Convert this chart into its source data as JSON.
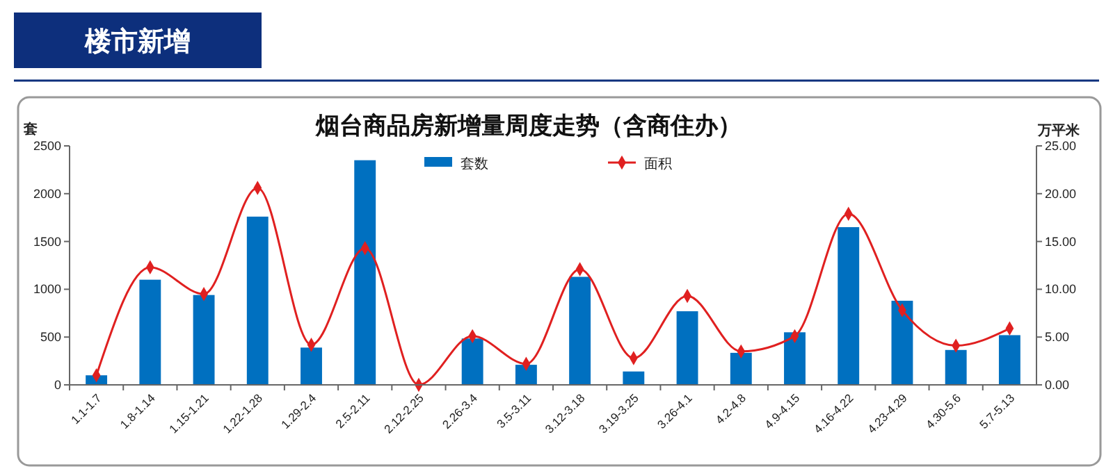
{
  "chart_data": {
    "type": "bar",
    "title": "楼市新增",
    "subtitle": "烟台商品房新增量周度走势（含商住办）",
    "ylabel": "套",
    "y2label": "万平米",
    "categories": [
      "1.1-1.7",
      "1.8-1.14",
      "1.15-1.21",
      "1.22-1.28",
      "1.29-2.4",
      "2.5-2.11",
      "2.12-2.25",
      "2.26-3.4",
      "3.5-3.11",
      "3.12-3.18",
      "3.19-3.25",
      "3.26-4.1",
      "4.2-4.8",
      "4.9-4.15",
      "4.16-4.22",
      "4.23-4.29",
      "4.30-5.6",
      "5.7-5.13"
    ],
    "series": [
      {
        "name": "套数",
        "color": "#0070c0",
        "values": [
          100,
          1100,
          940,
          1760,
          390,
          2350,
          0,
          485,
          210,
          1130,
          140,
          770,
          335,
          550,
          1650,
          880,
          365,
          520
        ]
      },
      {
        "name": "面积",
        "type": "line",
        "axis": "y2",
        "color": "#e02020",
        "marker": "diamond",
        "values": [
          1.0,
          12.3,
          9.5,
          20.6,
          4.2,
          14.3,
          0,
          5.1,
          2.2,
          12.1,
          2.8,
          9.3,
          3.5,
          5.1,
          17.9,
          7.8,
          4.1,
          5.9
        ]
      }
    ],
    "ylim": [
      0,
      2500
    ],
    "yticks": [
      0,
      500,
      1000,
      1500,
      2000,
      2500
    ],
    "y2lim": [
      0,
      25
    ],
    "y2ticks": [
      {
        "value": 0,
        "label": "0.00"
      },
      {
        "value": 5,
        "label": "5.00"
      },
      {
        "value": 10,
        "label": "10.00"
      },
      {
        "value": 15,
        "label": "15.00"
      },
      {
        "value": 20,
        "label": "20.00"
      },
      {
        "value": 25,
        "label": "25.00"
      }
    ],
    "legend": "top",
    "grid": false
  }
}
